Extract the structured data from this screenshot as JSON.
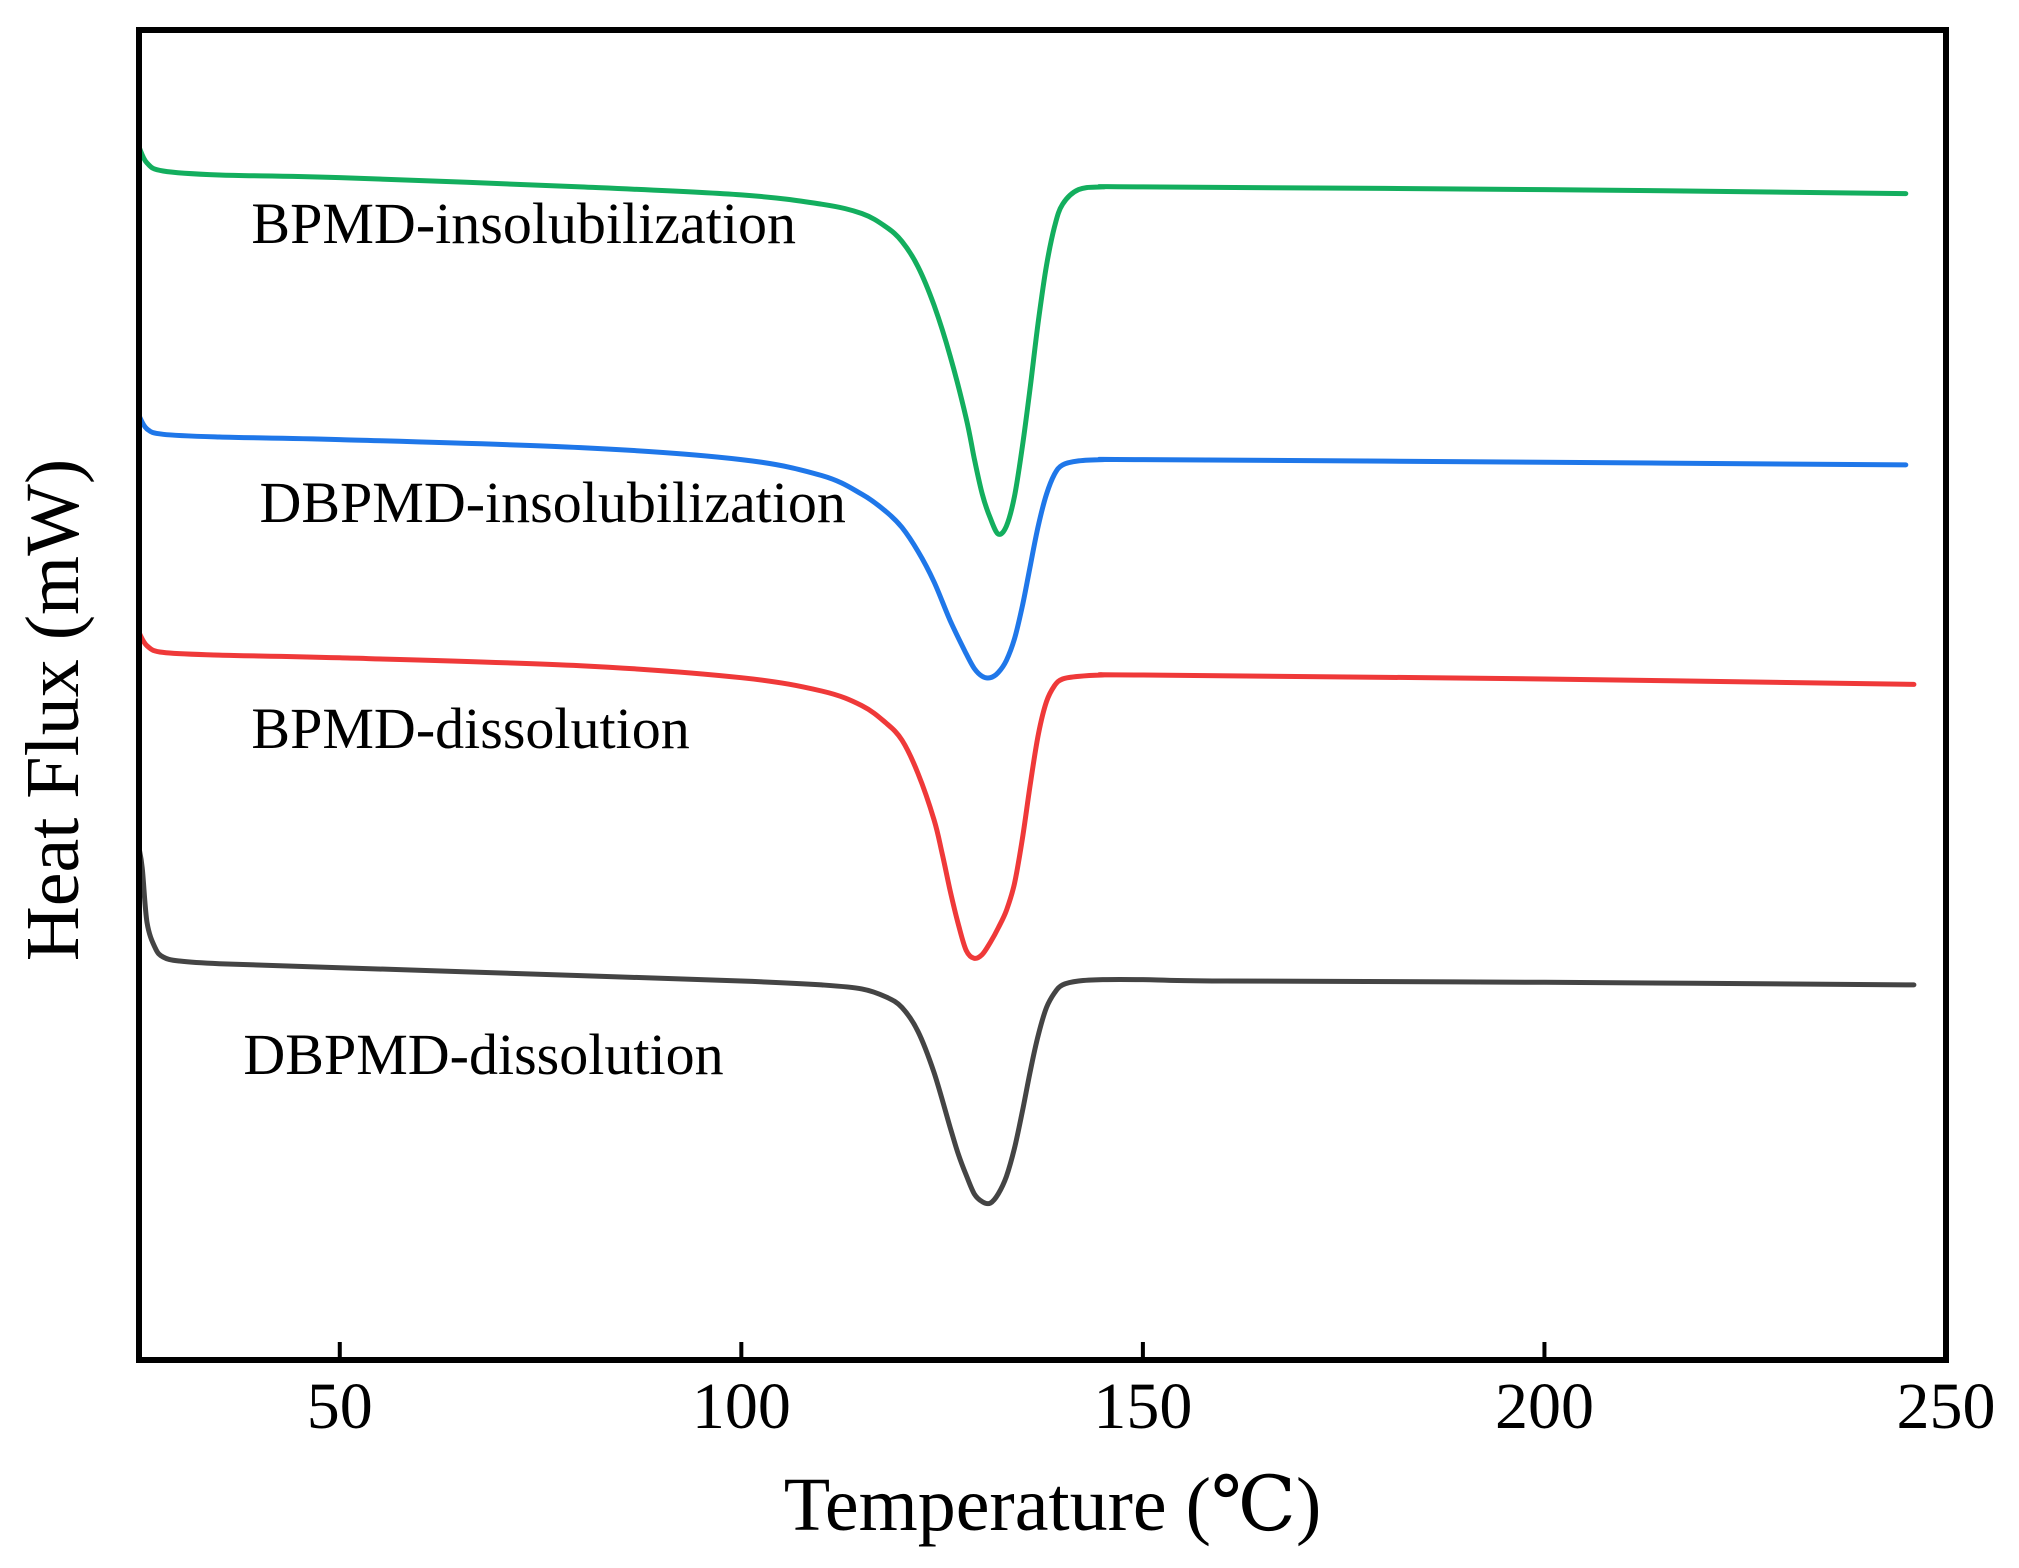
{
  "chart_data": {
    "type": "line",
    "title": "",
    "xlabel": "Temperature (℃)",
    "ylabel": "Heat Flux (mW)",
    "xlim": [
      25,
      250
    ],
    "ylim": [
      0,
      100
    ],
    "xticks": [
      50,
      100,
      150,
      200,
      250
    ],
    "xtick_labels": [
      "50",
      "100",
      "150",
      "200",
      "250"
    ],
    "grid": false,
    "legend": "inline labels",
    "series": [
      {
        "name": "BPMD-insolubilization",
        "color": "#13AE5E",
        "x": [
          25,
          26,
          28,
          35,
          50,
          80,
          100,
          110,
          115,
          118,
          120,
          122,
          124,
          126,
          128,
          129,
          130,
          131,
          132,
          133,
          134,
          135,
          136,
          137,
          138,
          139,
          140,
          142,
          145,
          150,
          200,
          245
        ],
        "y": [
          91.2,
          90.0,
          89.4,
          89.1,
          88.9,
          88.2,
          87.6,
          86.9,
          86.2,
          85.2,
          84.1,
          82.2,
          79.3,
          75.5,
          70.8,
          67.8,
          65.1,
          63.3,
          62.1,
          62.7,
          64.9,
          68.7,
          73.3,
          78.2,
          82.3,
          85.2,
          86.9,
          88.0,
          88.2,
          88.2,
          88.0,
          87.7
        ]
      },
      {
        "name": "DBPMD-insolubilization",
        "color": "#1F77E9",
        "x": [
          25,
          26,
          28,
          35,
          50,
          80,
          100,
          110,
          115,
          118,
          120,
          122,
          124,
          126,
          128,
          129,
          130,
          131,
          132,
          133,
          134,
          135,
          136,
          137,
          138,
          139,
          140,
          142,
          145,
          150,
          200,
          245
        ],
        "y": [
          71.0,
          70.0,
          69.6,
          69.4,
          69.2,
          68.6,
          67.7,
          66.5,
          65.1,
          63.8,
          62.6,
          60.8,
          58.5,
          55.6,
          53.1,
          52.0,
          51.4,
          51.3,
          51.7,
          52.6,
          54.2,
          56.7,
          59.8,
          62.8,
          65.1,
          66.6,
          67.3,
          67.6,
          67.7,
          67.7,
          67.5,
          67.3
        ]
      },
      {
        "name": "BPMD-dissolution",
        "color": "#EF3939",
        "x": [
          25,
          26,
          28,
          35,
          50,
          80,
          100,
          110,
          115,
          118,
          120,
          122,
          124,
          125,
          126,
          127,
          128,
          129,
          130,
          131,
          132,
          133,
          134,
          135,
          136,
          137,
          138,
          139,
          140,
          142,
          145,
          150,
          200,
          246
        ],
        "y": [
          54.7,
          53.7,
          53.2,
          53.0,
          52.8,
          52.2,
          51.3,
          50.3,
          49.2,
          47.9,
          46.6,
          44.1,
          40.6,
          38.1,
          35.3,
          32.8,
          30.8,
          30.2,
          30.5,
          31.4,
          32.5,
          33.8,
          35.8,
          39.2,
          43.4,
          47.1,
          49.5,
          50.7,
          51.2,
          51.4,
          51.5,
          51.5,
          51.2,
          50.8
        ]
      },
      {
        "name": "DBPMD-dissolution",
        "color": "#444444",
        "x": [
          25,
          25.4,
          26,
          27,
          28,
          30,
          35,
          50,
          80,
          100,
          110,
          115,
          118,
          120,
          122,
          124,
          126,
          127,
          128,
          129,
          130,
          131,
          132,
          133,
          134,
          135,
          136,
          137,
          138,
          139,
          140,
          142,
          145,
          150,
          160,
          200,
          246
        ],
        "y": [
          38.5,
          37.0,
          32.9,
          31.0,
          30.3,
          30.0,
          29.8,
          29.5,
          28.9,
          28.5,
          28.2,
          27.9,
          27.3,
          26.5,
          24.7,
          21.6,
          17.5,
          15.5,
          13.9,
          12.5,
          11.9,
          11.8,
          12.5,
          13.8,
          15.9,
          18.7,
          21.8,
          24.5,
          26.5,
          27.6,
          28.2,
          28.5,
          28.6,
          28.6,
          28.5,
          28.4,
          28.2
        ]
      }
    ],
    "annotations": [
      {
        "series": "BPMD-insolubilization",
        "text": "BPMD-insolubilization",
        "x": 39,
        "y": 84.0
      },
      {
        "series": "DBPMD-insolubilization",
        "text": "DBPMD-insolubilization",
        "x": 40,
        "y": 63.0
      },
      {
        "series": "BPMD-dissolution",
        "text": "BPMD-dissolution",
        "x": 39,
        "y": 46.0
      },
      {
        "series": "DBPMD-dissolution",
        "text": "DBPMD-dissolution",
        "x": 38,
        "y": 21.5
      }
    ]
  }
}
